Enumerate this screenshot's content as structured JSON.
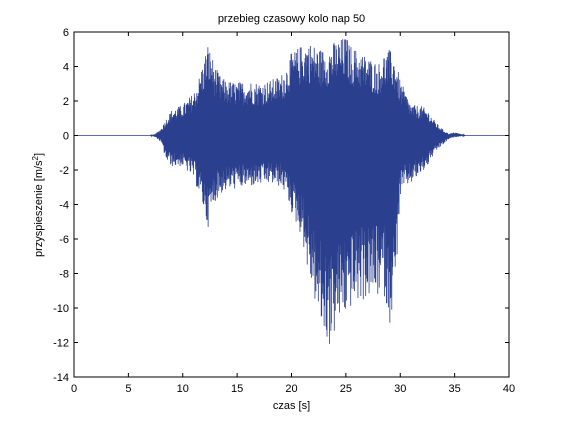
{
  "chart_data": {
    "type": "line",
    "title": "przebieg czasowy kolo nap 50",
    "xlabel": "czas [s]",
    "ylabel": "przyspieszenie [m/s",
    "ylabel_sup": "2",
    "ylabel_end": "]",
    "xlim": [
      0,
      40
    ],
    "ylim": [
      -14,
      6
    ],
    "xticks": [
      "0",
      "5",
      "10",
      "15",
      "20",
      "25",
      "30",
      "35",
      "40"
    ],
    "yticks": [
      "6",
      "4",
      "2",
      "0",
      "-2",
      "-4",
      "-6",
      "-8",
      "-10",
      "-12",
      "-14"
    ],
    "grid": false,
    "series": [
      {
        "color": "#2b3f8f",
        "x": [
          0,
          7.0,
          7.5,
          8.0,
          8.5,
          9.0,
          10.0,
          11.0,
          11.5,
          12.0,
          12.3,
          12.5,
          13.0,
          13.5,
          14.0,
          15.0,
          16.0,
          17.0,
          18.0,
          19.0,
          19.5,
          20.0,
          21.0,
          21.5,
          22.0,
          22.5,
          23.0,
          23.5,
          24.0,
          24.5,
          25.0,
          25.5,
          26.0,
          27.0,
          28.0,
          28.5,
          29.0,
          29.5,
          30.0,
          30.5,
          31.0,
          32.0,
          32.5,
          33.0,
          33.5,
          34.0,
          34.5,
          35.0,
          35.5,
          36.0,
          40.0
        ],
        "upper": [
          0,
          0,
          0.1,
          0.4,
          1.0,
          1.5,
          1.8,
          2.5,
          3.4,
          4.6,
          5.4,
          5.0,
          4.0,
          3.4,
          3.2,
          3.1,
          3.2,
          3.1,
          3.2,
          3.5,
          4.0,
          4.8,
          5.3,
          5.5,
          5.3,
          5.1,
          5.0,
          5.2,
          5.5,
          5.6,
          5.8,
          5.2,
          5.0,
          4.6,
          4.2,
          4.8,
          5.0,
          4.6,
          3.2,
          2.5,
          1.8,
          1.7,
          1.5,
          1.0,
          0.6,
          0.3,
          0.1,
          0.2,
          0.1,
          0,
          0
        ],
        "lower": [
          0,
          0,
          -0.1,
          -0.4,
          -1.5,
          -1.8,
          -1.8,
          -2.5,
          -3.4,
          -4.5,
          -5.4,
          -4.8,
          -3.8,
          -3.4,
          -3.2,
          -3.1,
          -3.0,
          -2.9,
          -2.8,
          -3.0,
          -3.4,
          -4.5,
          -6.0,
          -8.0,
          -9.2,
          -10.8,
          -11.8,
          -12.3,
          -11.5,
          -10.8,
          -10.5,
          -10.0,
          -9.8,
          -9.5,
          -9.4,
          -9.2,
          -11.0,
          -9.5,
          -3.6,
          -3.0,
          -2.8,
          -2.2,
          -1.8,
          -1.2,
          -0.8,
          -0.5,
          -0.2,
          -0.1,
          -0.05,
          0,
          0
        ]
      }
    ]
  }
}
